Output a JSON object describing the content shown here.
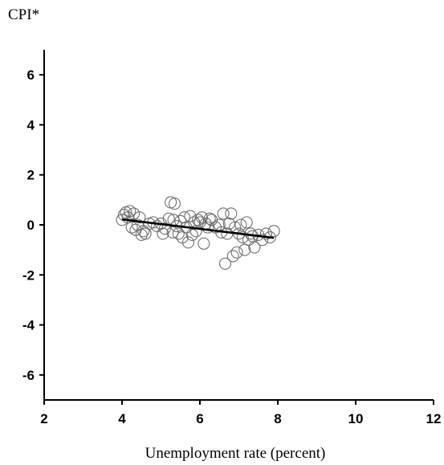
{
  "chart_data": {
    "type": "scatter",
    "ylabel": "CPI*",
    "xlabel": "Unemployment rate (percent)",
    "xlim": [
      2,
      12
    ],
    "ylim": [
      -7,
      7
    ],
    "x_ticks": [
      2,
      4,
      6,
      8,
      10,
      12
    ],
    "y_ticks": [
      6,
      4,
      2,
      0,
      -2,
      -4,
      -6
    ],
    "grid": false,
    "series": [
      {
        "marker": "open-circle",
        "points": [
          [
            4.0,
            0.2
          ],
          [
            4.05,
            0.4
          ],
          [
            4.1,
            0.5
          ],
          [
            4.15,
            0.3
          ],
          [
            4.2,
            0.55
          ],
          [
            4.25,
            -0.1
          ],
          [
            4.3,
            0.45
          ],
          [
            4.35,
            -0.2
          ],
          [
            4.4,
            0.0
          ],
          [
            4.45,
            0.3
          ],
          [
            4.5,
            -0.4
          ],
          [
            4.55,
            -0.25
          ],
          [
            4.6,
            -0.35
          ],
          [
            4.7,
            0.05
          ],
          [
            4.8,
            0.1
          ],
          [
            4.9,
            -0.05
          ],
          [
            5.0,
            0.05
          ],
          [
            5.05,
            -0.35
          ],
          [
            5.1,
            -0.15
          ],
          [
            5.2,
            0.25
          ],
          [
            5.25,
            0.9
          ],
          [
            5.3,
            -0.3
          ],
          [
            5.32,
            0.2
          ],
          [
            5.35,
            0.85
          ],
          [
            5.4,
            -0.05
          ],
          [
            5.45,
            -0.35
          ],
          [
            5.5,
            0.15
          ],
          [
            5.55,
            -0.5
          ],
          [
            5.6,
            0.3
          ],
          [
            5.65,
            -0.1
          ],
          [
            5.7,
            -0.7
          ],
          [
            5.75,
            0.35
          ],
          [
            5.8,
            -0.4
          ],
          [
            5.85,
            0.1
          ],
          [
            5.9,
            -0.25
          ],
          [
            5.95,
            0.2
          ],
          [
            6.0,
            0.1
          ],
          [
            6.05,
            0.3
          ],
          [
            6.1,
            -0.75
          ],
          [
            6.15,
            0.05
          ],
          [
            6.2,
            -0.1
          ],
          [
            6.25,
            0.25
          ],
          [
            6.3,
            0.2
          ],
          [
            6.4,
            -0.1
          ],
          [
            6.5,
            0.0
          ],
          [
            6.55,
            -0.3
          ],
          [
            6.6,
            0.45
          ],
          [
            6.65,
            -1.55
          ],
          [
            6.7,
            -0.35
          ],
          [
            6.75,
            0.05
          ],
          [
            6.8,
            0.45
          ],
          [
            6.85,
            -1.25
          ],
          [
            6.9,
            -0.1
          ],
          [
            6.95,
            -1.1
          ],
          [
            7.0,
            -0.35
          ],
          [
            7.05,
            0.0
          ],
          [
            7.1,
            -0.5
          ],
          [
            7.15,
            -1.0
          ],
          [
            7.2,
            0.1
          ],
          [
            7.25,
            -0.6
          ],
          [
            7.3,
            -0.35
          ],
          [
            7.35,
            -0.45
          ],
          [
            7.4,
            -0.9
          ],
          [
            7.5,
            -0.4
          ],
          [
            7.6,
            -0.6
          ],
          [
            7.7,
            -0.35
          ],
          [
            7.8,
            -0.5
          ],
          [
            7.9,
            -0.25
          ]
        ]
      },
      {
        "marker": "line",
        "points": [
          [
            4.0,
            0.22
          ],
          [
            7.9,
            -0.52
          ]
        ]
      }
    ]
  }
}
